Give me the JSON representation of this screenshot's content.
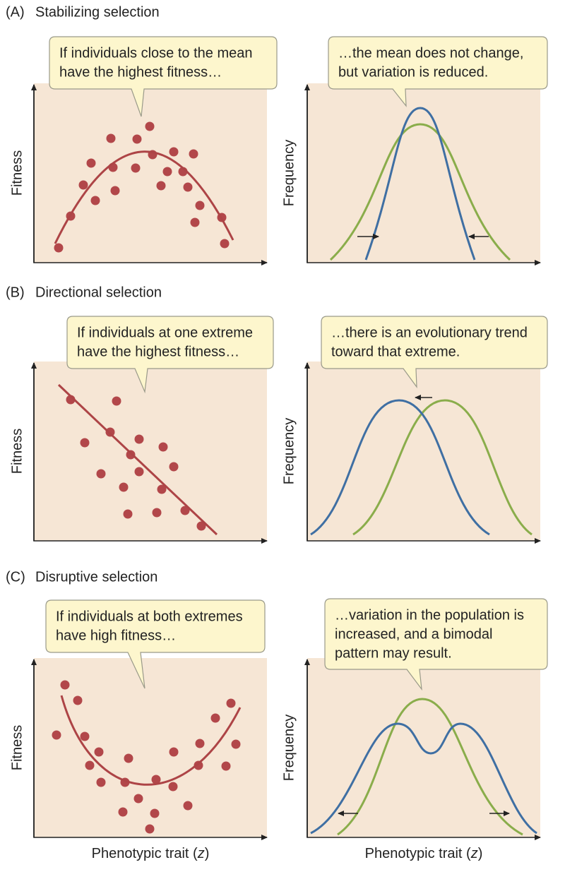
{
  "panels": [
    {
      "letter": "(A)",
      "title": "Stabilizing selection",
      "left": {
        "callout": [
          "If individuals close to the mean",
          "have the highest fitness…"
        ],
        "y_label": "Fitness"
      },
      "right": {
        "callout": [
          "…the mean does not change,",
          "but variation is reduced."
        ],
        "y_label": "Frequency"
      }
    },
    {
      "letter": "(B)",
      "title": "Directional selection",
      "left": {
        "callout": [
          "If individuals at one extreme",
          "have the highest fitness…"
        ],
        "y_label": "Fitness"
      },
      "right": {
        "callout": [
          "…there is an evolutionary trend",
          "toward that extreme."
        ],
        "y_label": "Frequency"
      }
    },
    {
      "letter": "(C)",
      "title": "Disruptive selection",
      "left": {
        "callout": [
          "If individuals at both extremes",
          "have high fitness…"
        ],
        "y_label": "Fitness"
      },
      "right": {
        "callout": [
          "…variation in the population is",
          "increased, and a bimodal",
          "pattern may result."
        ],
        "y_label": "Frequency"
      }
    }
  ],
  "x_label": [
    "Phenotypic trait (",
    "z",
    ")"
  ]
}
